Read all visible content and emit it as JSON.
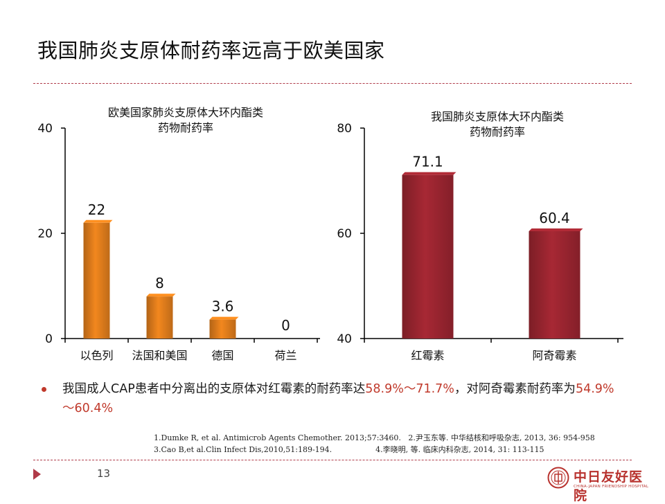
{
  "title": "我国肺炎支原体耐药率远高于欧美国家",
  "chart_data": [
    {
      "type": "bar",
      "title": [
        "欧美国家肺炎支原体大环内酯类",
        "药物耐药率"
      ],
      "categories": [
        "以色列",
        "法国和美国",
        "德国",
        "荷兰"
      ],
      "values": [
        22,
        8,
        3.6,
        0
      ],
      "value_labels": [
        "22",
        "8",
        "3.6",
        "0"
      ],
      "ylim": [
        0,
        40
      ],
      "yticks": [
        "0",
        "20",
        "40"
      ],
      "color": "#e07d1c"
    },
    {
      "type": "bar",
      "title": [
        "我国肺炎支原体大环内酯类",
        "药物耐药率"
      ],
      "categories": [
        "红霉素",
        "阿奇霉素"
      ],
      "values": [
        71.1,
        60.4
      ],
      "value_labels": [
        "71.1",
        "60.4"
      ],
      "ylim": [
        40,
        80
      ],
      "yticks": [
        "40",
        "60",
        "80"
      ],
      "color": "#9b2530"
    }
  ],
  "bullet": {
    "part1": "我国成人CAP患者中分离出的支原体对红霉素的耐药率达",
    "range1": "58.9%～71.7%",
    "part2": "，对阿奇霉素耐药率为",
    "range2": "54.9%～60.4%"
  },
  "refs": {
    "line1": "1.Dumke R, et al. Antimicrob Agents Chemother. 2013;57:3460.   2.尹玉东等. 中华结核和呼吸杂志, 2013, 36: 954-958",
    "line2": "3.Cao B,et al.Clin Infect Dis,2010,51:189-194.                  4.李晓明, 等. 临床内科杂志, 2014, 31: 113-115"
  },
  "page_number": "13",
  "logo": {
    "cn": "中日友好医院",
    "en": "CHINA-JAPAN FRIENDSHIP HOSPITAL"
  },
  "colors": {
    "accent": "#b03a48",
    "highlight": "#c0392b"
  }
}
